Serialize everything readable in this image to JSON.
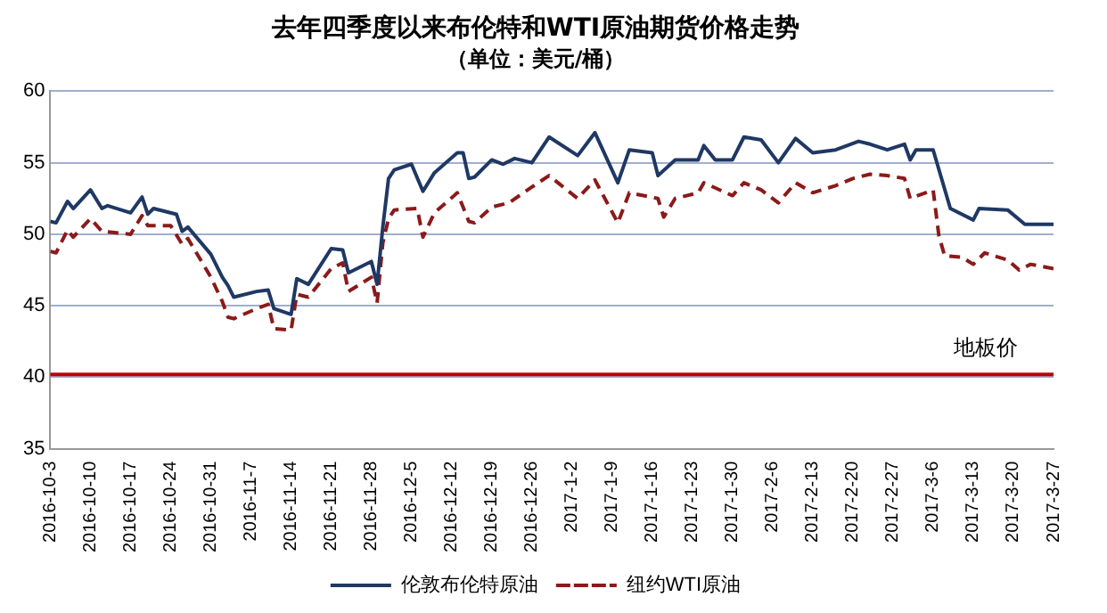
{
  "chart_data": {
    "type": "line",
    "title": "去年四季度以来布伦特和WTI原油期货价格走势",
    "subtitle": "（单位：美元/桶）",
    "xlim": [
      "2016-10-03",
      "2017-03-27"
    ],
    "xticks": [
      {
        "value": "2016-10-03",
        "label": "2016-10-3"
      },
      {
        "value": "2016-10-10",
        "label": "2016-10-10"
      },
      {
        "value": "2016-10-17",
        "label": "2016-10-17"
      },
      {
        "value": "2016-10-24",
        "label": "2016-10-24"
      },
      {
        "value": "2016-10-31",
        "label": "2016-10-31"
      },
      {
        "value": "2016-11-07",
        "label": "2016-11-7"
      },
      {
        "value": "2016-11-14",
        "label": "2016-11-14"
      },
      {
        "value": "2016-11-21",
        "label": "2016-11-21"
      },
      {
        "value": "2016-11-28",
        "label": "2016-11-28"
      },
      {
        "value": "2016-12-05",
        "label": "2016-12-5"
      },
      {
        "value": "2016-12-12",
        "label": "2016-12-12"
      },
      {
        "value": "2016-12-19",
        "label": "2016-12-19"
      },
      {
        "value": "2016-12-26",
        "label": "2016-12-26"
      },
      {
        "value": "2017-01-02",
        "label": "2017-1-2"
      },
      {
        "value": "2017-01-09",
        "label": "2017-1-9"
      },
      {
        "value": "2017-01-16",
        "label": "2017-1-16"
      },
      {
        "value": "2017-01-23",
        "label": "2017-1-23"
      },
      {
        "value": "2017-01-30",
        "label": "2017-1-30"
      },
      {
        "value": "2017-02-06",
        "label": "2017-2-6"
      },
      {
        "value": "2017-02-13",
        "label": "2017-2-13"
      },
      {
        "value": "2017-02-20",
        "label": "2017-2-20"
      },
      {
        "value": "2017-02-27",
        "label": "2017-2-27"
      },
      {
        "value": "2017-03-06",
        "label": "2017-3-6"
      },
      {
        "value": "2017-03-13",
        "label": "2017-3-13"
      },
      {
        "value": "2017-03-20",
        "label": "2017-3-20"
      },
      {
        "value": "2017-03-27",
        "label": "2017-3-27"
      }
    ],
    "ylim": [
      35,
      60
    ],
    "yticks": [
      35,
      40,
      45,
      50,
      55,
      60
    ],
    "grid": "y",
    "legend": "bottom",
    "marker": "none",
    "series": [
      {
        "name": "伦敦布伦特原油",
        "color": "#1f3864",
        "line_style": "solid",
        "x": [
          "2016-10-03",
          "2016-10-04",
          "2016-10-06",
          "2016-10-07",
          "2016-10-10",
          "2016-10-12",
          "2016-10-13",
          "2016-10-17",
          "2016-10-19",
          "2016-10-20",
          "2016-10-21",
          "2016-10-25",
          "2016-10-26",
          "2016-10-27",
          "2016-10-31",
          "2016-11-02",
          "2016-11-03",
          "2016-11-04",
          "2016-11-08",
          "2016-11-10",
          "2016-11-11",
          "2016-11-14",
          "2016-11-15",
          "2016-11-17",
          "2016-11-21",
          "2016-11-23",
          "2016-11-24",
          "2016-11-28",
          "2016-11-29",
          "2016-11-30",
          "2016-12-01",
          "2016-12-02",
          "2016-12-05",
          "2016-12-07",
          "2016-12-09",
          "2016-12-13",
          "2016-12-14",
          "2016-12-15",
          "2016-12-16",
          "2016-12-19",
          "2016-12-21",
          "2016-12-23",
          "2016-12-26",
          "2016-12-29",
          "2017-01-03",
          "2017-01-06",
          "2017-01-10",
          "2017-01-12",
          "2017-01-16",
          "2017-01-17",
          "2017-01-20",
          "2017-01-24",
          "2017-01-25",
          "2017-01-27",
          "2017-01-30",
          "2017-02-01",
          "2017-02-04",
          "2017-02-07",
          "2017-02-10",
          "2017-02-13",
          "2017-02-17",
          "2017-02-21",
          "2017-02-23",
          "2017-02-26",
          "2017-03-01",
          "2017-03-02",
          "2017-03-03",
          "2017-03-06",
          "2017-03-09",
          "2017-03-13",
          "2017-03-14",
          "2017-03-19",
          "2017-03-22",
          "2017-03-27"
        ],
        "values": [
          50.9,
          50.8,
          52.3,
          51.8,
          53.1,
          51.8,
          52.0,
          51.5,
          52.6,
          51.4,
          51.8,
          51.4,
          50.2,
          50.5,
          48.6,
          47.0,
          46.4,
          45.6,
          46.0,
          46.1,
          44.8,
          44.4,
          46.9,
          46.5,
          49.0,
          48.9,
          47.3,
          48.1,
          46.5,
          50.5,
          53.9,
          54.5,
          54.9,
          53.0,
          54.3,
          55.7,
          55.7,
          53.9,
          54.0,
          55.2,
          54.9,
          55.3,
          55.0,
          56.8,
          55.5,
          57.1,
          53.6,
          55.9,
          55.7,
          54.1,
          55.2,
          55.2,
          56.2,
          55.2,
          55.2,
          56.8,
          56.6,
          55.0,
          56.7,
          55.7,
          55.9,
          56.5,
          56.3,
          55.9,
          56.3,
          55.2,
          55.9,
          55.9,
          51.8,
          51.0,
          51.8,
          51.7,
          50.7,
          50.7
        ]
      },
      {
        "name": "纽约WTI原油",
        "color": "#8b1a1a",
        "line_style": "dashed",
        "x": [
          "2016-10-03",
          "2016-10-04",
          "2016-10-06",
          "2016-10-07",
          "2016-10-10",
          "2016-10-12",
          "2016-10-17",
          "2016-10-19",
          "2016-10-20",
          "2016-10-24",
          "2016-10-26",
          "2016-10-27",
          "2016-10-31",
          "2016-11-02",
          "2016-11-03",
          "2016-11-04",
          "2016-11-08",
          "2016-11-10",
          "2016-11-11",
          "2016-11-14",
          "2016-11-15",
          "2016-11-17",
          "2016-11-21",
          "2016-11-23",
          "2016-11-24",
          "2016-11-28",
          "2016-11-29",
          "2016-11-30",
          "2016-12-01",
          "2016-12-02",
          "2016-12-06",
          "2016-12-07",
          "2016-12-09",
          "2016-12-13",
          "2016-12-15",
          "2016-12-16",
          "2016-12-19",
          "2016-12-22",
          "2016-12-26",
          "2016-12-29",
          "2017-01-03",
          "2017-01-06",
          "2017-01-10",
          "2017-01-12",
          "2017-01-17",
          "2017-01-18",
          "2017-01-20",
          "2017-01-24",
          "2017-01-25",
          "2017-01-30",
          "2017-02-01",
          "2017-02-04",
          "2017-02-07",
          "2017-02-10",
          "2017-02-13",
          "2017-02-17",
          "2017-02-20",
          "2017-02-23",
          "2017-02-26",
          "2017-03-01",
          "2017-03-02",
          "2017-03-06",
          "2017-03-07",
          "2017-03-08",
          "2017-03-11",
          "2017-03-13",
          "2017-03-15",
          "2017-03-19",
          "2017-03-21",
          "2017-03-23",
          "2017-03-27"
        ],
        "values": [
          48.8,
          48.7,
          50.3,
          49.8,
          51.1,
          50.2,
          50.0,
          51.3,
          50.6,
          50.6,
          49.3,
          49.7,
          47.0,
          45.3,
          44.2,
          44.1,
          44.8,
          45.1,
          43.4,
          43.3,
          45.8,
          45.6,
          47.6,
          48.0,
          46.0,
          47.0,
          45.2,
          49.4,
          51.1,
          51.7,
          51.8,
          49.8,
          51.5,
          52.9,
          50.9,
          50.8,
          51.9,
          52.2,
          53.3,
          54.1,
          52.5,
          53.8,
          50.8,
          52.9,
          52.5,
          51.2,
          52.5,
          52.9,
          53.6,
          52.7,
          53.6,
          53.1,
          52.2,
          53.6,
          52.9,
          53.4,
          53.9,
          54.2,
          54.1,
          53.9,
          52.5,
          53.1,
          49.9,
          48.5,
          48.4,
          47.9,
          48.7,
          48.2,
          47.5,
          47.9,
          47.6
        ]
      }
    ],
    "ref_lines": [
      {
        "axis": "y",
        "value": 40.2,
        "label": "地板价",
        "color": "#c00000",
        "line_style": "solid"
      }
    ]
  }
}
